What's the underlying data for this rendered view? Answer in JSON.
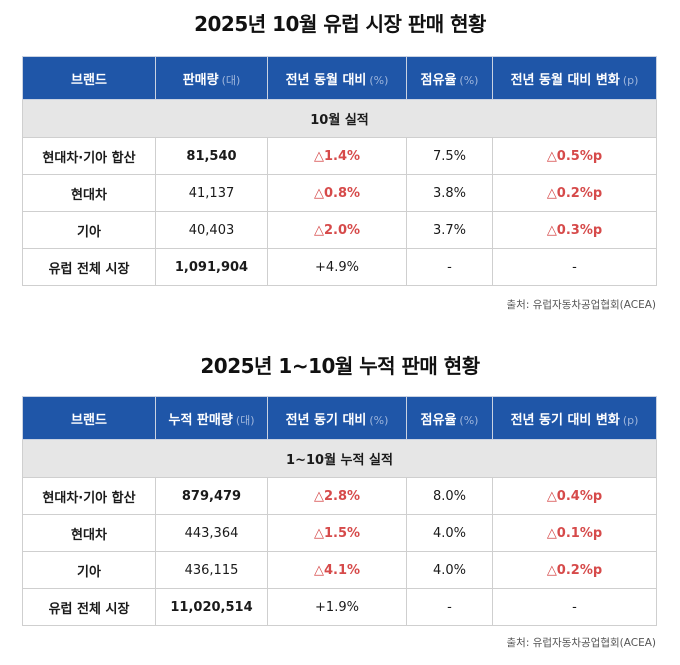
{
  "table1": {
    "title": "2025년 10월 유럽 시장 판매 현황",
    "headers": [
      {
        "label": "브랜드",
        "unit": ""
      },
      {
        "label": "판매량",
        "unit": "(대)"
      },
      {
        "label": "전년 동월 대비",
        "unit": "(%)"
      },
      {
        "label": "점유율",
        "unit": "(%)"
      },
      {
        "label": "전년 동월 대비 변화",
        "unit": "(p)"
      }
    ],
    "section": "10월 실적",
    "rows": [
      [
        "현대차·기아 합산",
        "81,540",
        "△1.4%",
        "7.5%",
        "△0.5%p"
      ],
      [
        "현대차",
        "41,137",
        "△0.8%",
        "3.8%",
        "△0.2%p"
      ],
      [
        "기아",
        "40,403",
        "△2.0%",
        "3.7%",
        "△0.3%p"
      ],
      [
        "유럽 전체 시장",
        "1,091,904",
        "+4.9%",
        "-",
        "-"
      ]
    ],
    "source": "출처: 유럽자동차공업협회(ACEA)"
  },
  "table2": {
    "title": "2025년 1~10월 누적 판매 현황",
    "headers": [
      {
        "label": "브랜드",
        "unit": ""
      },
      {
        "label": "누적 판매량",
        "unit": "(대)"
      },
      {
        "label": "전년 동기 대비",
        "unit": "(%)"
      },
      {
        "label": "점유율",
        "unit": "(%)"
      },
      {
        "label": "전년 동기 대비 변화",
        "unit": "(p)"
      }
    ],
    "section": "1~10월 누적 실적",
    "rows": [
      [
        "현대차·기아 합산",
        "879,479",
        "△2.8%",
        "8.0%",
        "△0.4%p"
      ],
      [
        "현대차",
        "443,364",
        "△1.5%",
        "4.0%",
        "△0.1%p"
      ],
      [
        "기아",
        "436,115",
        "△4.1%",
        "4.0%",
        "△0.2%p"
      ],
      [
        "유럽 전체 시장",
        "11,020,514",
        "+1.9%",
        "-",
        "-"
      ]
    ],
    "source": "출처: 유럽자동차공업협회(ACEA)"
  }
}
